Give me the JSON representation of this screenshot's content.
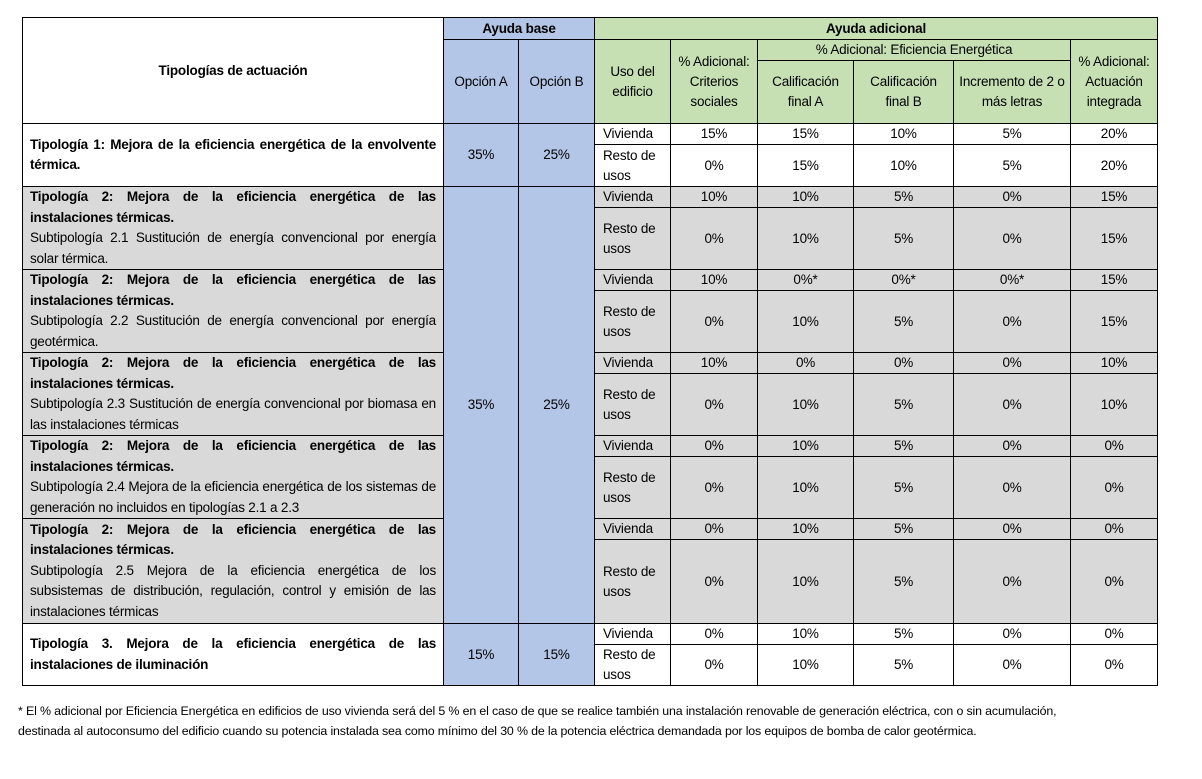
{
  "header": {
    "tipologias": "Tipologías de actuación",
    "ayuda_base": "Ayuda base",
    "opcion_a": "Opción A",
    "opcion_b": "Opción B",
    "ayuda_adicional": "Ayuda adicional",
    "uso": "Uso del edificio",
    "criterios": "% Adicional: Criterios sociales",
    "eficiencia": "% Adicional: Eficiencia Energética",
    "calif_a": "Calificación final A",
    "calif_b": "Calificación final B",
    "incremento": "Incremento de 2 o más letras",
    "integrada": "% Adicional: Actuación integrada"
  },
  "colors": {
    "ayuda_base": "#b4c6e7",
    "ayuda_adicional": "#c6e0b4",
    "shaded_row": "#d9d9d9"
  },
  "groups": [
    {
      "title": "Tipología 1: Mejora de la eficiencia energética de la envolvente térmica.",
      "subtitle": "",
      "shaded": false,
      "opcion_a": "35%",
      "opcion_b": "25%",
      "rows": [
        {
          "uso": "Vivienda",
          "values": [
            "15%",
            "15%",
            "10%",
            "5%",
            "20%"
          ]
        },
        {
          "uso": "Resto de usos",
          "values": [
            "0%",
            "15%",
            "10%",
            "5%",
            "20%"
          ]
        }
      ]
    },
    {
      "title": "Tipología 2: Mejora de la eficiencia energética de las instalaciones térmicas.",
      "subtitle": "Subtipología 2.1 Sustitución de energía convencional por energía solar térmica.",
      "shaded": true,
      "opcion_a": "35%",
      "opcion_b": "25%",
      "rows": [
        {
          "uso": "Vivienda",
          "values": [
            "10%",
            "10%",
            "5%",
            "0%",
            "15%"
          ]
        },
        {
          "uso": "Resto de usos",
          "values": [
            "0%",
            "10%",
            "5%",
            "0%",
            "15%"
          ]
        }
      ]
    },
    {
      "title": "Tipología 2: Mejora de la eficiencia energética de las instalaciones térmicas.",
      "subtitle": "Subtipología 2.2 Sustitución de energía convencional por energía geotérmica.",
      "shaded": true,
      "rows": [
        {
          "uso": "Vivienda",
          "values": [
            "10%",
            "0%*",
            "0%*",
            "0%*",
            "15%"
          ]
        },
        {
          "uso": "Resto de usos",
          "values": [
            "0%",
            "10%",
            "5%",
            "0%",
            "15%"
          ]
        }
      ]
    },
    {
      "title": "Tipología 2: Mejora de la eficiencia energética de las instalaciones térmicas.",
      "subtitle": "Subtipología 2.3 Sustitución de energía convencional por biomasa en las instalaciones térmicas",
      "shaded": true,
      "rows": [
        {
          "uso": "Vivienda",
          "values": [
            "10%",
            "0%",
            "0%",
            "0%",
            "10%"
          ]
        },
        {
          "uso": "Resto de usos",
          "values": [
            "0%",
            "10%",
            "5%",
            "0%",
            "10%"
          ]
        }
      ]
    },
    {
      "title": "Tipología 2: Mejora de la eficiencia energética de las instalaciones térmicas.",
      "subtitle": "Subtipología 2.4 Mejora de la eficiencia energética de los sistemas de generación no incluidos en tipologías 2.1 a 2.3",
      "shaded": true,
      "rows": [
        {
          "uso": "Vivienda",
          "values": [
            "0%",
            "10%",
            "5%",
            "0%",
            "0%"
          ]
        },
        {
          "uso": "Resto de usos",
          "values": [
            "0%",
            "10%",
            "5%",
            "0%",
            "0%"
          ]
        }
      ]
    },
    {
      "title": "Tipología 2: Mejora de la eficiencia energética de las instalaciones térmicas.",
      "subtitle": "Subtipología 2.5 Mejora de la eficiencia energética de los subsistemas de distribución, regulación, control y emisión de las instalaciones térmicas",
      "shaded": true,
      "rows": [
        {
          "uso": "Vivienda",
          "values": [
            "0%",
            "10%",
            "5%",
            "0%",
            "0%"
          ]
        },
        {
          "uso": "Resto de usos",
          "values": [
            "0%",
            "10%",
            "5%",
            "0%",
            "0%"
          ]
        }
      ]
    },
    {
      "title": "Tipología 3. Mejora de la eficiencia energética de las instalaciones de iluminación",
      "subtitle": "",
      "shaded": false,
      "opcion_a": "15%",
      "opcion_b": "15%",
      "rows": [
        {
          "uso": "Vivienda",
          "values": [
            "0%",
            "10%",
            "5%",
            "0%",
            "0%"
          ]
        },
        {
          "uso": "Resto de usos",
          "values": [
            "0%",
            "10%",
            "5%",
            "0%",
            "0%"
          ]
        }
      ]
    }
  ],
  "footnote": {
    "line1": "* El % adicional por Eficiencia Energética en edificios de uso vivienda será del 5 % en el caso de que se realice también una instalación renovable de generación eléctrica, con o sin acumulación,",
    "line2": "destinada al autoconsumo del edificio cuando su potencia instalada sea como mínimo del 30 % de la potencia eléctrica demandada por los equipos de bomba de calor geotérmica."
  }
}
